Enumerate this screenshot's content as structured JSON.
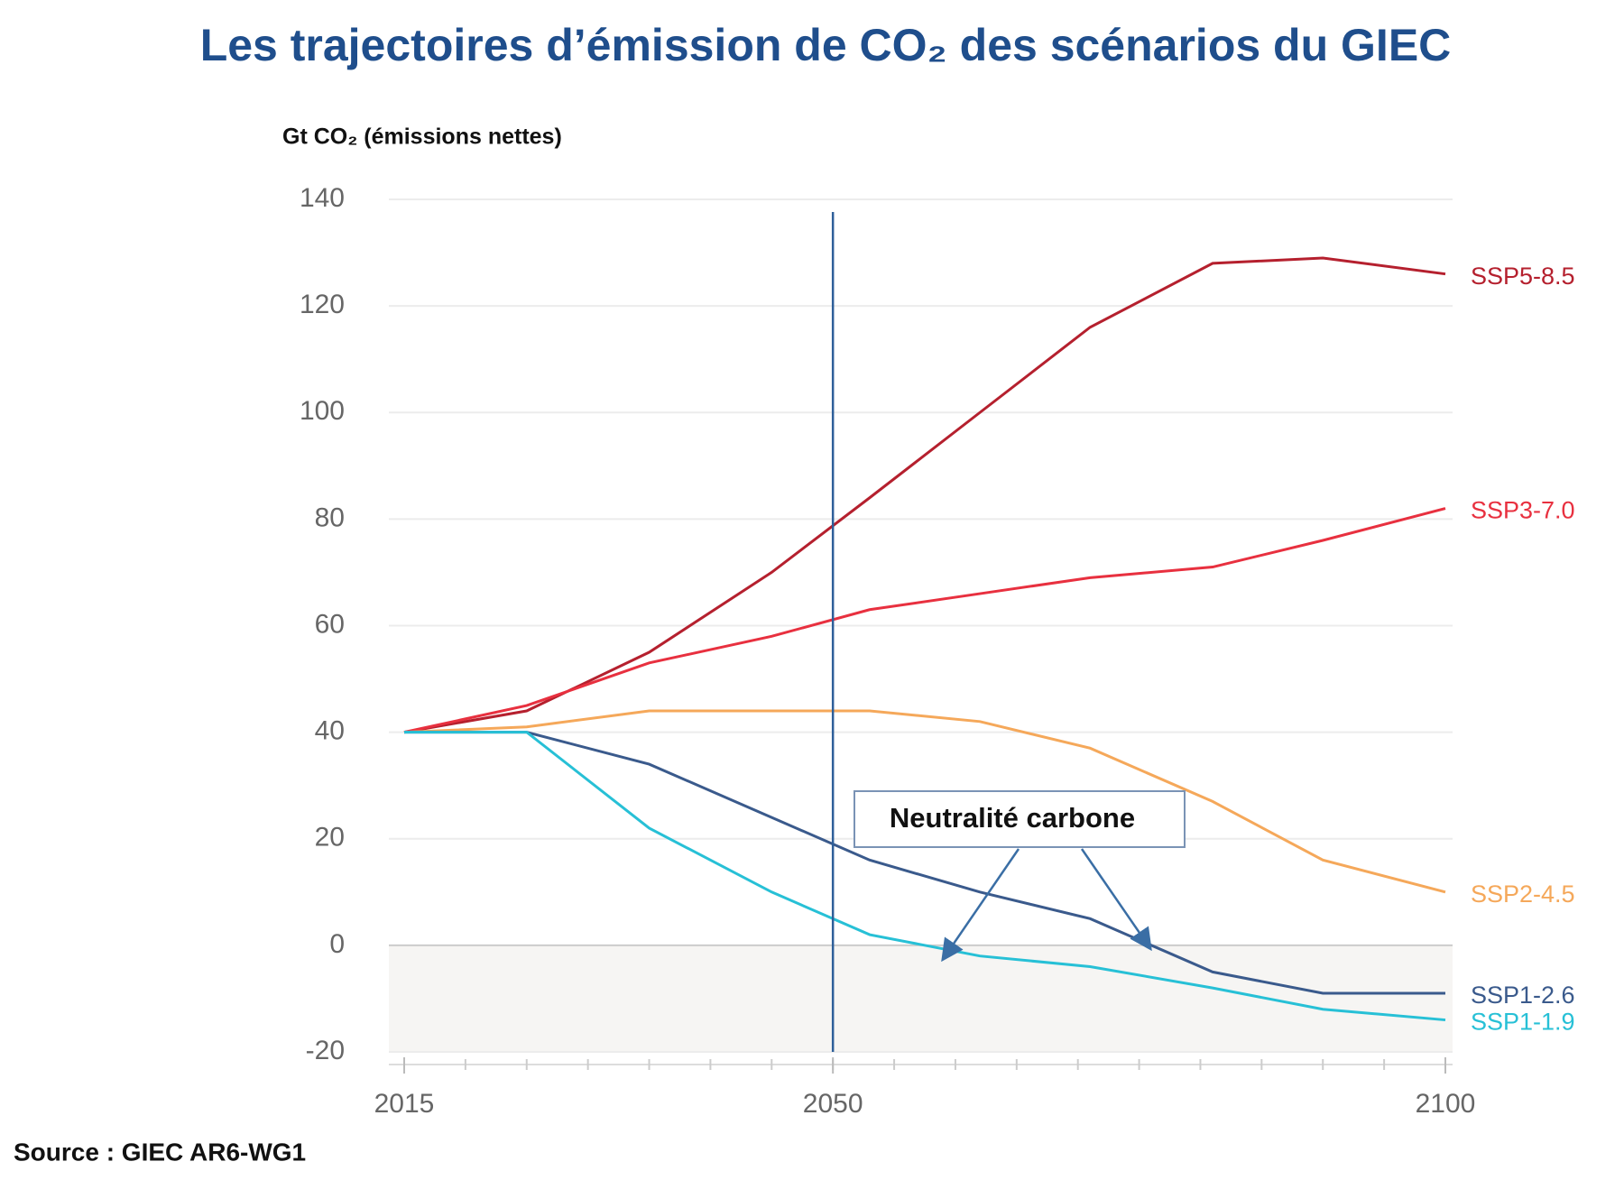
{
  "chart_data": {
    "type": "line",
    "title": "Les trajectoires d’émission de CO₂ des scénarios du GIEC",
    "y_label": "Gt CO₂ (émissions nettes)",
    "source": "Source : GIEC AR6-WG1",
    "annotation": "Neutralité carbone",
    "vline": 2050,
    "x": [
      2015,
      2025,
      2035,
      2045,
      2053,
      2062,
      2071,
      2081,
      2090,
      2100
    ],
    "series": [
      {
        "name": "SSP5-8.5",
        "color": "#b5202e",
        "values": [
          40,
          44,
          55,
          70,
          84,
          100,
          116,
          128,
          129,
          126
        ]
      },
      {
        "name": "SSP3-7.0",
        "color": "#e8303f",
        "values": [
          40,
          45,
          53,
          58,
          63,
          66,
          69,
          71,
          76,
          82
        ]
      },
      {
        "name": "SSP2-4.5",
        "color": "#f5a85a",
        "values": [
          40,
          41,
          44,
          44,
          44,
          42,
          37,
          27,
          16,
          10
        ]
      },
      {
        "name": "SSP1-2.6",
        "color": "#3a5a8c",
        "values": [
          40,
          40,
          34,
          24,
          16,
          10,
          5,
          -5,
          -9,
          -9
        ]
      },
      {
        "name": "SSP1-1.9",
        "color": "#27c0d6",
        "values": [
          40,
          40,
          22,
          10,
          2,
          -2,
          -4,
          -8,
          -12,
          -14
        ]
      }
    ],
    "xlim": [
      2015,
      2100
    ],
    "xticks": [
      2015,
      2050,
      2100
    ],
    "ylim": [
      -20,
      140
    ],
    "yticks": [
      -20,
      0,
      20,
      40,
      60,
      80,
      100,
      120,
      140
    ],
    "grid": true
  }
}
